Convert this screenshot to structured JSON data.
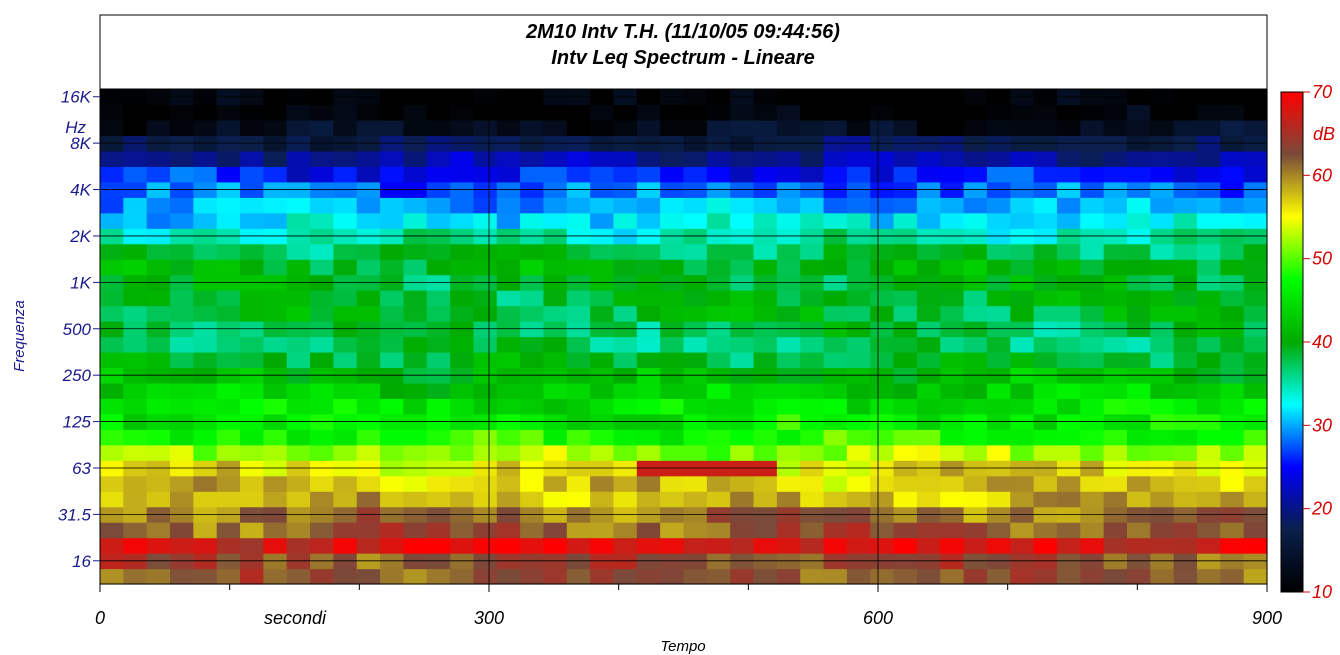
{
  "chart_data": {
    "type": "heatmap",
    "title_line1": "2M10 Intv T.H. (11/10/05 09:44:56)",
    "title_line2": "Intv Leq Spectrum - Lineare",
    "xlabel": "Tempo",
    "x_unit_label": "secondi",
    "ylabel": "Frequenza",
    "y_unit_label": "Hz",
    "xlim": [
      0,
      900
    ],
    "x_ticks": [
      "0",
      "300",
      "600",
      "900"
    ],
    "y_ticks": [
      "16",
      "31.5",
      "63",
      "125",
      "250",
      "500",
      "1K",
      "2K",
      "4K",
      "8K",
      "16K"
    ],
    "colorbar": {
      "unit": "dB",
      "range": [
        10,
        70
      ],
      "ticks": [
        "10",
        "20",
        "30",
        "40",
        "50",
        "60",
        "70"
      ],
      "colors": [
        "#000000",
        "#0a1f4a",
        "#0000ff",
        "#00ffff",
        "#00aa00",
        "#00ff00",
        "#ffff00",
        "#7a4a3a",
        "#ff0000"
      ]
    },
    "band_levels_db": [
      {
        "band": "12.5",
        "db": 62
      },
      {
        "band": "16",
        "db": 63
      },
      {
        "band": "20",
        "db": 68
      },
      {
        "band": "25",
        "db": 62
      },
      {
        "band": "31.5",
        "db": 61
      },
      {
        "band": "40",
        "db": 58
      },
      {
        "band": "50",
        "db": 57
      },
      {
        "band": "63",
        "db": 56
      },
      {
        "band": "80",
        "db": 52
      },
      {
        "band": "100",
        "db": 48
      },
      {
        "band": "125",
        "db": 46
      },
      {
        "band": "160",
        "db": 45
      },
      {
        "band": "200",
        "db": 43
      },
      {
        "band": "250",
        "db": 41
      },
      {
        "band": "315",
        "db": 39
      },
      {
        "band": "400",
        "db": 37
      },
      {
        "band": "500",
        "db": 38
      },
      {
        "band": "630",
        "db": 39
      },
      {
        "band": "800",
        "db": 39
      },
      {
        "band": "1000",
        "db": 39
      },
      {
        "band": "1250",
        "db": 40
      },
      {
        "band": "1600",
        "db": 38
      },
      {
        "band": "2000",
        "db": 35
      },
      {
        "band": "2500",
        "db": 32
      },
      {
        "band": "3150",
        "db": 30
      },
      {
        "band": "4000",
        "db": 28
      },
      {
        "band": "5000",
        "db": 25
      },
      {
        "band": "6300",
        "db": 21
      },
      {
        "band": "8000",
        "db": 17
      },
      {
        "band": "10000",
        "db": 13
      },
      {
        "band": "12500",
        "db": 10
      },
      {
        "band": "16000",
        "db": 10
      }
    ],
    "hotspot": {
      "x_range": [
        420,
        520
      ],
      "band": "63",
      "db": 67
    }
  }
}
